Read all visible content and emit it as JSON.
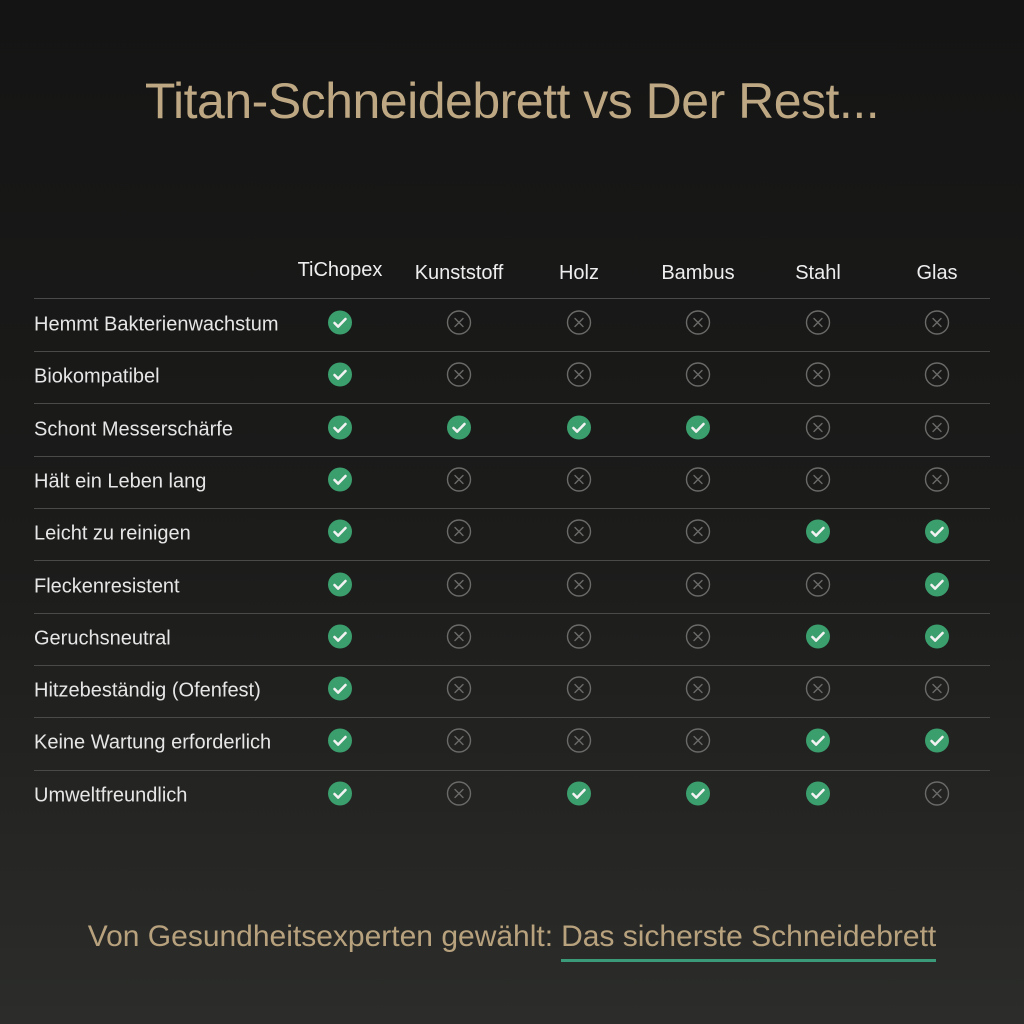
{
  "header": {
    "title": "Titan-Schneidebrett vs Der Rest..."
  },
  "table": {
    "columns": [
      "TiChopex",
      "Kunststoff",
      "Holz",
      "Bambus",
      "Stahl",
      "Glas"
    ],
    "rows": [
      {
        "label": "Hemmt Bakterienwachstum",
        "checks": [
          true,
          false,
          false,
          false,
          false,
          false
        ]
      },
      {
        "label": "Biokompatibel",
        "checks": [
          true,
          false,
          false,
          false,
          false,
          false
        ]
      },
      {
        "label": "Schont Messerschärfe",
        "checks": [
          true,
          true,
          true,
          true,
          false,
          false
        ]
      },
      {
        "label": "Hält ein Leben lang",
        "checks": [
          true,
          false,
          false,
          false,
          false,
          false
        ]
      },
      {
        "label": "Leicht zu reinigen",
        "checks": [
          true,
          false,
          false,
          false,
          true,
          true
        ]
      },
      {
        "label": "Fleckenresistent",
        "checks": [
          true,
          false,
          false,
          false,
          false,
          true
        ]
      },
      {
        "label": "Geruchsneutral",
        "checks": [
          true,
          false,
          false,
          false,
          true,
          true
        ]
      },
      {
        "label": "Hitzebeständig (Ofenfest)",
        "checks": [
          true,
          false,
          false,
          false,
          false,
          false
        ]
      },
      {
        "label": "Keine Wartung erforderlich",
        "checks": [
          true,
          false,
          false,
          false,
          true,
          true
        ]
      },
      {
        "label": "Umweltfreundlich",
        "checks": [
          true,
          false,
          true,
          true,
          true,
          false
        ]
      }
    ]
  },
  "footer": {
    "lead": "Von Gesundheitsexperten gewählt:",
    "highlight": "Das sicherste Schneidebrett"
  }
}
